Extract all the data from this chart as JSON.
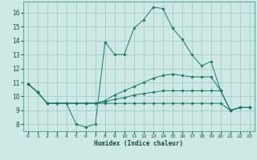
{
  "title": "",
  "xlabel": "Humidex (Indice chaleur)",
  "xlim": [
    -0.5,
    23.5
  ],
  "ylim": [
    7.5,
    16.8
  ],
  "yticks": [
    8,
    9,
    10,
    11,
    12,
    13,
    14,
    15,
    16
  ],
  "xticks": [
    0,
    1,
    2,
    3,
    4,
    5,
    6,
    7,
    8,
    9,
    10,
    11,
    12,
    13,
    14,
    15,
    16,
    17,
    18,
    19,
    20,
    21,
    22,
    23
  ],
  "background_color": "#cde8e5",
  "grid_color": "#9dc8c4",
  "line_color": "#1a7a6e",
  "lines": [
    [
      10.9,
      10.3,
      9.5,
      9.5,
      9.5,
      8.0,
      7.8,
      8.0,
      13.9,
      13.0,
      13.0,
      14.9,
      15.5,
      16.4,
      16.3,
      14.9,
      14.1,
      13.0,
      12.2,
      12.5,
      10.4,
      9.0,
      9.2,
      9.2
    ],
    [
      10.9,
      10.3,
      9.5,
      9.5,
      9.5,
      9.5,
      9.5,
      9.5,
      9.7,
      10.1,
      10.4,
      10.7,
      11.0,
      11.3,
      11.5,
      11.6,
      11.5,
      11.4,
      11.4,
      11.4,
      10.4,
      9.0,
      9.2,
      9.2
    ],
    [
      10.9,
      10.3,
      9.5,
      9.5,
      9.5,
      9.5,
      9.5,
      9.5,
      9.6,
      9.8,
      9.9,
      10.1,
      10.2,
      10.3,
      10.4,
      10.4,
      10.4,
      10.4,
      10.4,
      10.4,
      10.4,
      9.0,
      9.2,
      9.2
    ],
    [
      10.9,
      10.3,
      9.5,
      9.5,
      9.5,
      9.5,
      9.5,
      9.5,
      9.5,
      9.5,
      9.5,
      9.5,
      9.5,
      9.5,
      9.5,
      9.5,
      9.5,
      9.5,
      9.5,
      9.5,
      9.5,
      9.0,
      9.2,
      9.2
    ]
  ]
}
